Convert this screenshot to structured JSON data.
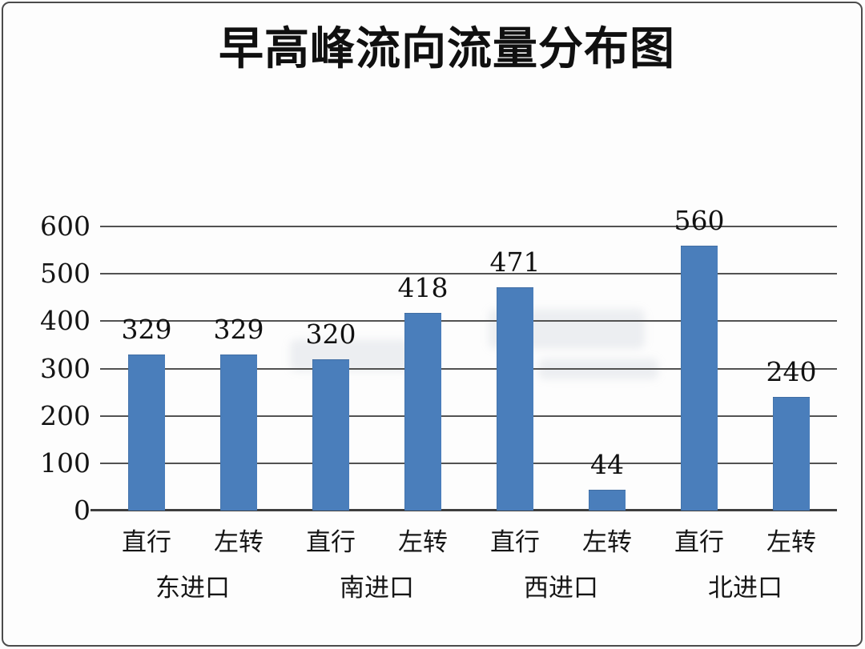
{
  "chart_data": {
    "type": "bar",
    "title": "早高峰流向流量分布图",
    "categories": [
      "直行",
      "左转",
      "直行",
      "左转",
      "直行",
      "左转",
      "直行",
      "左转"
    ],
    "values": [
      329,
      329,
      320,
      418,
      471,
      44,
      560,
      240
    ],
    "groups": [
      {
        "label": "东进口",
        "bars": [
          {
            "category": "直行",
            "value": 329
          },
          {
            "category": "左转",
            "value": 329
          }
        ]
      },
      {
        "label": "南进口",
        "bars": [
          {
            "category": "直行",
            "value": 320
          },
          {
            "category": "左转",
            "value": 418
          }
        ]
      },
      {
        "label": "西进口",
        "bars": [
          {
            "category": "直行",
            "value": 471
          },
          {
            "category": "左转",
            "value": 44
          }
        ]
      },
      {
        "label": "北进口",
        "bars": [
          {
            "category": "直行",
            "value": 560
          },
          {
            "category": "左转",
            "value": 240
          }
        ]
      }
    ],
    "xlabel": "",
    "ylabel": "",
    "ylim": [
      0,
      600
    ],
    "y_ticks": [
      0,
      100,
      200,
      300,
      400,
      500,
      600
    ],
    "grid": "horizontal",
    "legend": "none",
    "data_labels": "above-bars",
    "bar_color": "#4a7ebb",
    "gridline_color": "#525252",
    "text_color": "#111111",
    "background_color": "#fdfdfd"
  }
}
